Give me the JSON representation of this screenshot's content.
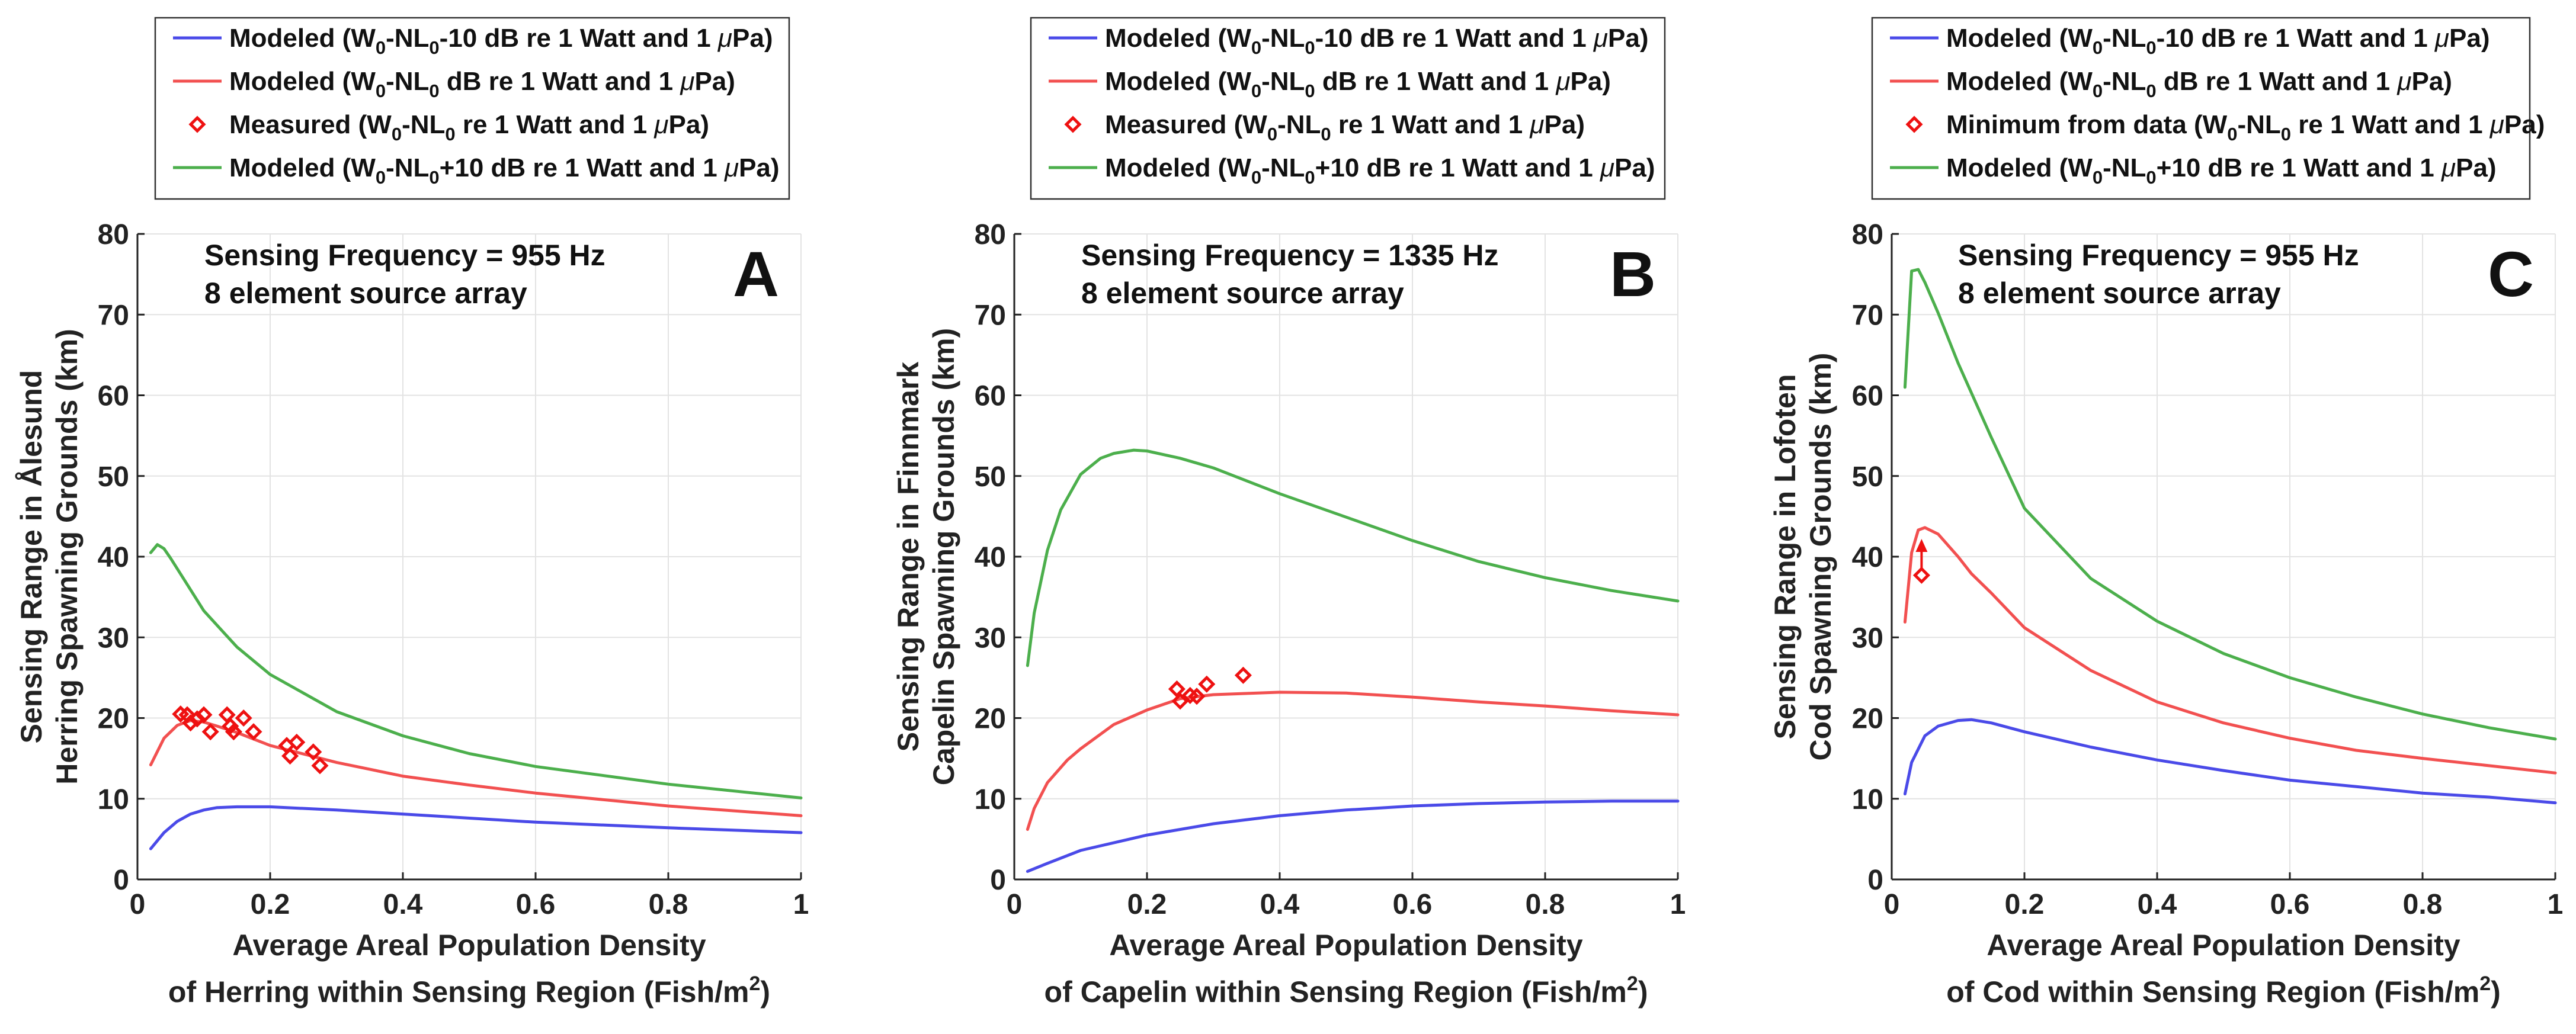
{
  "chart_data": [
    {
      "type": "line",
      "panel_letter": "A",
      "annotation": [
        "Sensing Frequency = 955 Hz",
        "8 element source array"
      ],
      "ylabel": [
        "Sensing Range in Ålesund",
        "Herring Spawning Grounds (km)"
      ],
      "xlabel": [
        "Average Areal Population Density",
        "of Herring within Sensing Region (Fish/m",
        "2",
        ")"
      ],
      "xlim": [
        0,
        1
      ],
      "ylim": [
        0,
        80
      ],
      "xticks": [
        0,
        0.2,
        0.4,
        0.6,
        0.8,
        1
      ],
      "xtick_labels": [
        "0",
        "0.2",
        "0.4",
        "0.6",
        "0.8",
        "1"
      ],
      "yticks": [
        0,
        10,
        20,
        30,
        40,
        50,
        60,
        70,
        80
      ],
      "ytick_labels": [
        "0",
        "10",
        "20",
        "30",
        "40",
        "50",
        "60",
        "70",
        "80"
      ],
      "grid": true,
      "legend": [
        {
          "kind": "line",
          "color": "#4a4ae8",
          "parts": [
            [
              "Modeled (W",
              ""
            ],
            [
              "0",
              "sub"
            ],
            [
              "-NL",
              ""
            ],
            [
              "0",
              "sub"
            ],
            [
              "-10 dB re 1 Watt and 1 ",
              ""
            ],
            [
              "μ",
              "it"
            ],
            [
              "Pa)",
              ""
            ]
          ]
        },
        {
          "kind": "line",
          "color": "#f25050",
          "parts": [
            [
              "Modeled (W",
              ""
            ],
            [
              "0",
              "sub"
            ],
            [
              "-NL",
              ""
            ],
            [
              "0",
              "sub"
            ],
            [
              " dB re 1 Watt and 1 ",
              ""
            ],
            [
              "μ",
              "it"
            ],
            [
              "Pa)",
              ""
            ]
          ]
        },
        {
          "kind": "marker",
          "color": "#ee1111",
          "parts": [
            [
              "Measured (W",
              ""
            ],
            [
              "0",
              "sub"
            ],
            [
              "-NL",
              ""
            ],
            [
              "0",
              "sub"
            ],
            [
              " re 1 Watt and 1 ",
              ""
            ],
            [
              "μ",
              "it"
            ],
            [
              "Pa)",
              ""
            ]
          ]
        },
        {
          "kind": "line",
          "color": "#4caf4c",
          "parts": [
            [
              "Modeled (W",
              ""
            ],
            [
              "0",
              "sub"
            ],
            [
              "-NL",
              ""
            ],
            [
              "0",
              "sub"
            ],
            [
              "+10 dB re 1 Watt and 1 ",
              ""
            ],
            [
              "μ",
              "it"
            ],
            [
              "Pa)",
              ""
            ]
          ]
        }
      ],
      "series": [
        {
          "name": "Modeled (W0-NL0-10 dB re 1 Watt and 1 μPa)",
          "color": "#4a4ae8",
          "x": [
            0.02,
            0.04,
            0.06,
            0.08,
            0.1,
            0.12,
            0.15,
            0.2,
            0.3,
            0.4,
            0.6,
            0.8,
            1.0
          ],
          "y": [
            3.8,
            5.8,
            7.2,
            8.1,
            8.6,
            8.9,
            9.0,
            9.0,
            8.6,
            8.1,
            7.1,
            6.4,
            5.8
          ]
        },
        {
          "name": "Modeled (W0-NL0 dB re 1 Watt and 1 μPa)",
          "color": "#f25050",
          "x": [
            0.02,
            0.04,
            0.06,
            0.08,
            0.1,
            0.12,
            0.15,
            0.2,
            0.3,
            0.4,
            0.5,
            0.6,
            0.8,
            1.0
          ],
          "y": [
            14.2,
            17.5,
            19.1,
            19.7,
            19.5,
            19.0,
            18.2,
            16.6,
            14.5,
            12.8,
            11.7,
            10.7,
            9.1,
            7.9
          ]
        },
        {
          "name": "Modeled (W0-NL0+10 dB re 1 Watt and 1 μPa)",
          "color": "#4caf4c",
          "x": [
            0.02,
            0.03,
            0.04,
            0.05,
            0.07,
            0.1,
            0.15,
            0.2,
            0.3,
            0.4,
            0.5,
            0.6,
            0.8,
            1.0
          ],
          "y": [
            40.5,
            41.5,
            41.0,
            39.8,
            37.2,
            33.3,
            28.8,
            25.4,
            20.8,
            17.8,
            15.6,
            14.0,
            11.8,
            10.1
          ]
        }
      ],
      "markers": {
        "name": "Measured (W0-NL0 re 1 Watt and 1 μPa)",
        "color": "#ee1111",
        "x": [
          0.065,
          0.075,
          0.08,
          0.09,
          0.1,
          0.11,
          0.135,
          0.14,
          0.145,
          0.16,
          0.175,
          0.225,
          0.23,
          0.24,
          0.265,
          0.275
        ],
        "y": [
          20.5,
          20.4,
          19.4,
          19.9,
          20.4,
          18.3,
          20.4,
          19.0,
          18.3,
          20.0,
          18.3,
          16.6,
          15.3,
          17.0,
          15.8,
          14.1
        ]
      }
    },
    {
      "type": "line",
      "panel_letter": "B",
      "annotation": [
        "Sensing Frequency = 1335 Hz",
        "8 element source array"
      ],
      "ylabel": [
        "Sensing Range in Finnmark",
        "Capelin Spawning Grounds (km)"
      ],
      "xlabel": [
        "Average Areal Population Density",
        "of Capelin within Sensing Region (Fish/m",
        "2",
        ")"
      ],
      "xlim": [
        0,
        1
      ],
      "ylim": [
        0,
        80
      ],
      "xticks": [
        0,
        0.2,
        0.4,
        0.6,
        0.8,
        1
      ],
      "xtick_labels": [
        "0",
        "0.2",
        "0.4",
        "0.6",
        "0.8",
        "1"
      ],
      "yticks": [
        0,
        10,
        20,
        30,
        40,
        50,
        60,
        70,
        80
      ],
      "ytick_labels": [
        "0",
        "10",
        "20",
        "30",
        "40",
        "50",
        "60",
        "70",
        "80"
      ],
      "grid": true,
      "legend": [
        {
          "kind": "line",
          "color": "#4a4ae8",
          "parts": [
            [
              "Modeled (W",
              ""
            ],
            [
              "0",
              "sub"
            ],
            [
              "-NL",
              ""
            ],
            [
              "0",
              "sub"
            ],
            [
              "-10 dB re 1 Watt and 1 ",
              ""
            ],
            [
              "μ",
              "it"
            ],
            [
              "Pa)",
              ""
            ]
          ]
        },
        {
          "kind": "line",
          "color": "#f25050",
          "parts": [
            [
              "Modeled (W",
              ""
            ],
            [
              "0",
              "sub"
            ],
            [
              "-NL",
              ""
            ],
            [
              "0",
              "sub"
            ],
            [
              " dB re 1 Watt and 1 ",
              ""
            ],
            [
              "μ",
              "it"
            ],
            [
              "Pa)",
              ""
            ]
          ]
        },
        {
          "kind": "marker",
          "color": "#ee1111",
          "parts": [
            [
              "Measured (W",
              ""
            ],
            [
              "0",
              "sub"
            ],
            [
              "-NL",
              ""
            ],
            [
              "0",
              "sub"
            ],
            [
              " re 1 Watt and 1 ",
              ""
            ],
            [
              "μ",
              "it"
            ],
            [
              "Pa)",
              ""
            ]
          ]
        },
        {
          "kind": "line",
          "color": "#4caf4c",
          "parts": [
            [
              "Modeled (W",
              ""
            ],
            [
              "0",
              "sub"
            ],
            [
              "-NL",
              ""
            ],
            [
              "0",
              "sub"
            ],
            [
              "+10 dB re 1 Watt and 1 ",
              ""
            ],
            [
              "μ",
              "it"
            ],
            [
              "Pa)",
              ""
            ]
          ]
        }
      ],
      "series": [
        {
          "name": "Modeled (W0-NL0-10 dB re 1 Watt and 1 μPa)",
          "color": "#4a4ae8",
          "x": [
            0.02,
            0.05,
            0.1,
            0.2,
            0.3,
            0.4,
            0.5,
            0.6,
            0.7,
            0.8,
            0.9,
            1.0
          ],
          "y": [
            1.0,
            2.0,
            3.6,
            5.5,
            6.9,
            7.9,
            8.6,
            9.1,
            9.4,
            9.6,
            9.7,
            9.7
          ]
        },
        {
          "name": "Modeled (W0-NL0 dB re 1 Watt and 1 μPa)",
          "color": "#f25050",
          "x": [
            0.02,
            0.03,
            0.05,
            0.08,
            0.1,
            0.15,
            0.2,
            0.25,
            0.3,
            0.4,
            0.5,
            0.6,
            0.7,
            0.8,
            0.9,
            1.0
          ],
          "y": [
            6.2,
            8.8,
            12.0,
            14.8,
            16.2,
            19.2,
            21.0,
            22.4,
            22.9,
            23.2,
            23.1,
            22.6,
            22.0,
            21.5,
            20.9,
            20.4
          ]
        },
        {
          "name": "Modeled (W0-NL0+10 dB re 1 Watt and 1 μPa)",
          "color": "#4caf4c",
          "x": [
            0.02,
            0.03,
            0.05,
            0.07,
            0.1,
            0.13,
            0.15,
            0.18,
            0.2,
            0.25,
            0.3,
            0.4,
            0.5,
            0.6,
            0.7,
            0.8,
            0.9,
            1.0
          ],
          "y": [
            26.5,
            33.0,
            40.8,
            45.8,
            50.2,
            52.2,
            52.8,
            53.2,
            53.1,
            52.2,
            51.0,
            47.8,
            44.9,
            42.0,
            39.4,
            37.4,
            35.8,
            34.5
          ]
        }
      ],
      "markers": {
        "name": "Measured (W0-NL0 re 1 Watt and 1 μPa)",
        "color": "#ee1111",
        "x": [
          0.245,
          0.25,
          0.265,
          0.275,
          0.29,
          0.345
        ],
        "y": [
          23.6,
          22.1,
          22.8,
          22.7,
          24.2,
          25.3
        ]
      }
    },
    {
      "type": "line",
      "panel_letter": "C",
      "annotation": [
        "Sensing Frequency = 955 Hz",
        "8 element source array"
      ],
      "ylabel": [
        "Sensing Range in Lofoten",
        "Cod Spawning Grounds (km)"
      ],
      "xlabel": [
        "Average Areal Population Density",
        "of Cod within Sensing Region (Fish/m",
        "2",
        ")"
      ],
      "xlim": [
        0,
        1
      ],
      "ylim": [
        0,
        80
      ],
      "xticks": [
        0,
        0.2,
        0.4,
        0.6,
        0.8,
        1
      ],
      "xtick_labels": [
        "0",
        "0.2",
        "0.4",
        "0.6",
        "0.8",
        "1"
      ],
      "yticks": [
        0,
        10,
        20,
        30,
        40,
        50,
        60,
        70,
        80
      ],
      "ytick_labels": [
        "0",
        "10",
        "20",
        "30",
        "40",
        "50",
        "60",
        "70",
        "80"
      ],
      "grid": true,
      "legend": [
        {
          "kind": "line",
          "color": "#4a4ae8",
          "parts": [
            [
              "Modeled (W",
              ""
            ],
            [
              "0",
              "sub"
            ],
            [
              "-NL",
              ""
            ],
            [
              "0",
              "sub"
            ],
            [
              "-10 dB re 1 Watt and 1 ",
              ""
            ],
            [
              "μ",
              "it"
            ],
            [
              "Pa)",
              ""
            ]
          ]
        },
        {
          "kind": "line",
          "color": "#f25050",
          "parts": [
            [
              "Modeled (W",
              ""
            ],
            [
              "0",
              "sub"
            ],
            [
              "-NL",
              ""
            ],
            [
              "0",
              "sub"
            ],
            [
              " dB re 1 Watt and 1 ",
              ""
            ],
            [
              "μ",
              "it"
            ],
            [
              "Pa)",
              ""
            ]
          ]
        },
        {
          "kind": "marker",
          "color": "#ee1111",
          "parts": [
            [
              "Minimum from data (W",
              ""
            ],
            [
              "0",
              "sub"
            ],
            [
              "-NL",
              ""
            ],
            [
              "0",
              "sub"
            ],
            [
              " re 1 Watt and 1 ",
              ""
            ],
            [
              "μ",
              "it"
            ],
            [
              "Pa)",
              ""
            ]
          ]
        },
        {
          "kind": "line",
          "color": "#4caf4c",
          "parts": [
            [
              "Modeled (W",
              ""
            ],
            [
              "0",
              "sub"
            ],
            [
              "-NL",
              ""
            ],
            [
              "0",
              "sub"
            ],
            [
              "+10 dB re 1 Watt and 1 ",
              ""
            ],
            [
              "μ",
              "it"
            ],
            [
              "Pa)",
              ""
            ]
          ]
        }
      ],
      "series": [
        {
          "name": "Modeled (W0-NL0-10 dB re 1 Watt and 1 μPa)",
          "color": "#4a4ae8",
          "x": [
            0.02,
            0.03,
            0.05,
            0.07,
            0.1,
            0.12,
            0.15,
            0.2,
            0.3,
            0.4,
            0.5,
            0.6,
            0.7,
            0.8,
            0.9,
            1.0
          ],
          "y": [
            10.6,
            14.5,
            17.8,
            19.0,
            19.7,
            19.8,
            19.4,
            18.3,
            16.4,
            14.8,
            13.5,
            12.3,
            11.5,
            10.7,
            10.2,
            9.5
          ]
        },
        {
          "name": "Modeled (W0-NL0 dB re 1 Watt and 1 μPa)",
          "color": "#f25050",
          "x": [
            0.02,
            0.03,
            0.04,
            0.05,
            0.07,
            0.1,
            0.12,
            0.15,
            0.2,
            0.3,
            0.4,
            0.5,
            0.6,
            0.7,
            0.8,
            0.9,
            1.0
          ],
          "y": [
            31.9,
            40.5,
            43.3,
            43.6,
            42.8,
            40.0,
            37.9,
            35.5,
            31.2,
            25.9,
            22.0,
            19.4,
            17.5,
            16.0,
            15.0,
            14.1,
            13.2
          ]
        },
        {
          "name": "Modeled (W0-NL0+10 dB re 1 Watt and 1 μPa)",
          "color": "#4caf4c",
          "x": [
            0.02,
            0.03,
            0.04,
            0.05,
            0.07,
            0.1,
            0.15,
            0.2,
            0.3,
            0.4,
            0.5,
            0.6,
            0.7,
            0.8,
            0.9,
            1.0
          ],
          "y": [
            61.0,
            75.4,
            75.6,
            74.0,
            70.2,
            64.0,
            54.8,
            46.0,
            37.3,
            32.0,
            28.0,
            25.0,
            22.6,
            20.5,
            18.8,
            17.4
          ]
        }
      ],
      "markers": {
        "name": "Minimum from data (W0-NL0 re 1 Watt and 1 μPa)",
        "color": "#ee1111",
        "x": [
          0.045
        ],
        "y": [
          37.7
        ]
      },
      "arrow": {
        "x": 0.045,
        "from_y": 38.5,
        "to_y": 42.2,
        "color": "#ee1111"
      }
    }
  ]
}
